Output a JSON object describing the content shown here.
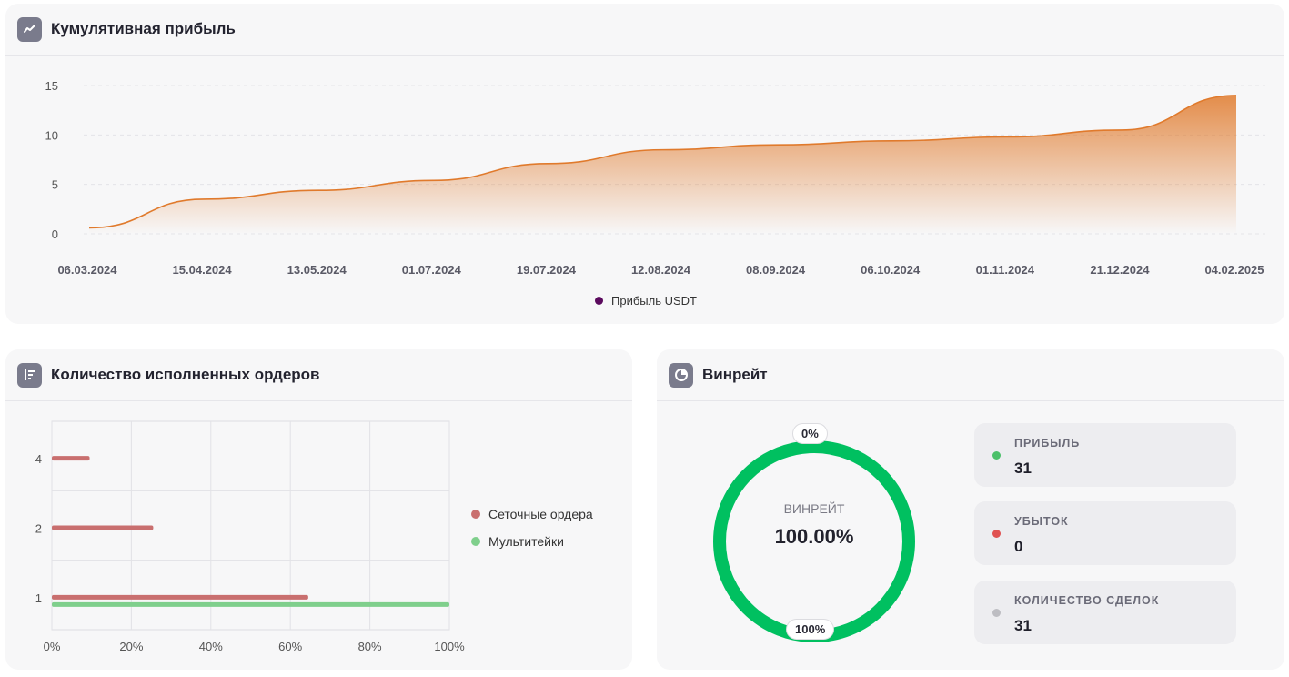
{
  "profit_card": {
    "title": "Кумулятивная прибыль",
    "icon": "line-chart-icon",
    "legend": "Прибыль USDT",
    "legend_color": "#5b0a5e",
    "line_color": "#e07a2c"
  },
  "orders_card": {
    "title": "Количество исполненных ордеров",
    "icon": "list-chart-icon",
    "legend": [
      {
        "name": "Сеточные ордера",
        "color": "#c96f6f"
      },
      {
        "name": "Мультитейки",
        "color": "#7fcf8c"
      }
    ]
  },
  "winrate_card": {
    "title": "Винрейт",
    "icon": "pie-chart-icon",
    "center_label": "ВИНРЕЙТ",
    "center_value": "100.00%",
    "top_badge": "0%",
    "bottom_badge": "100%",
    "ring_color": "#00c060",
    "stats": [
      {
        "label": "ПРИБЫЛЬ",
        "value": "31",
        "color": "#4cc06a"
      },
      {
        "label": "УБЫТОК",
        "value": "0",
        "color": "#e05252"
      },
      {
        "label": "КОЛИЧЕСТВО СДЕЛОК",
        "value": "31",
        "color": "#bdbdc2"
      }
    ]
  },
  "chart_data": [
    {
      "type": "area",
      "title": "Кумулятивная прибыль",
      "x": [
        "06.03.2024",
        "15.04.2024",
        "13.05.2024",
        "01.07.2024",
        "19.07.2024",
        "12.08.2024",
        "08.09.2024",
        "06.10.2024",
        "01.11.2024",
        "21.12.2024",
        "04.02.2025"
      ],
      "series": [
        {
          "name": "Прибыль USDT",
          "values": [
            0.6,
            3.5,
            4.4,
            5.4,
            7.1,
            8.5,
            9.0,
            9.4,
            9.8,
            10.5,
            14.0
          ]
        }
      ],
      "yticks": [
        0,
        5,
        10,
        15
      ],
      "ylim": [
        0,
        15
      ],
      "grid": true,
      "legend": "bottom-center"
    },
    {
      "type": "bar",
      "orientation": "horizontal",
      "categories": [
        "4",
        "2",
        "1"
      ],
      "series": [
        {
          "name": "Сеточные ордера",
          "values": [
            9.5,
            25.5,
            64.5
          ]
        },
        {
          "name": "Мультитейки",
          "values": [
            0,
            0,
            100
          ]
        }
      ],
      "xticks": [
        "0%",
        "20%",
        "40%",
        "60%",
        "80%",
        "100%"
      ],
      "xlim": [
        0,
        100
      ],
      "grid": true,
      "legend": "right"
    },
    {
      "type": "pie",
      "title": "Винрейт",
      "categories": [
        "ПРИБЫЛЬ",
        "УБЫТОК"
      ],
      "values": [
        31,
        0
      ]
    }
  ]
}
